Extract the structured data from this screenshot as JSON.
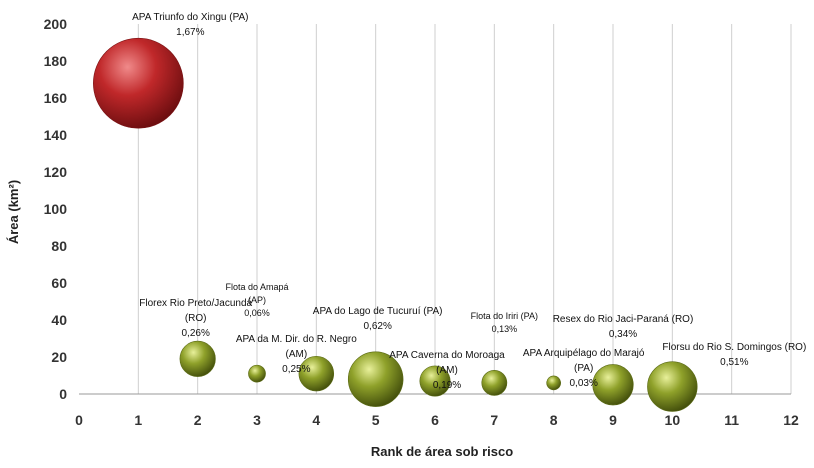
{
  "chart_data": {
    "type": "scatter",
    "subtype": "bubble",
    "title": "",
    "xlabel": "Rank de área sob risco",
    "ylabel": "Área (km²)",
    "xlim": [
      0,
      12
    ],
    "ylim": [
      0,
      200
    ],
    "x_ticks": [
      "0",
      "1",
      "2",
      "3",
      "4",
      "5",
      "6",
      "7",
      "8",
      "9",
      "10",
      "11",
      "12"
    ],
    "y_ticks": [
      "0",
      "20",
      "40",
      "60",
      "80",
      "100",
      "120",
      "140",
      "160",
      "180",
      "200"
    ],
    "grid": {
      "vertical": true,
      "horizontal": false
    },
    "colors": {
      "highlight": "#c0282a",
      "default": "#8fa12a",
      "grid": "#cfcfcf"
    },
    "points": [
      {
        "x": 1,
        "y": 168,
        "size_pct": 1.67,
        "highlight": true,
        "label_lines": [
          "APA  Triunfo do Xingu  (PA)",
          "1,67%"
        ]
      },
      {
        "x": 2,
        "y": 19,
        "size_pct": 0.26,
        "highlight": false,
        "label_lines": [
          "Florex Rio Preto/Jacundá",
          "(RO)",
          "0,26%"
        ]
      },
      {
        "x": 3,
        "y": 11,
        "size_pct": 0.06,
        "highlight": false,
        "label_lines": [
          "Flota do Amapá",
          "(AP)",
          "0,06%"
        ]
      },
      {
        "x": 4,
        "y": 11,
        "size_pct": 0.25,
        "highlight": false,
        "label_lines": [
          "APA da M. Dir. do R. Negro",
          "(AM)",
          "0,25%"
        ]
      },
      {
        "x": 5,
        "y": 8,
        "size_pct": 0.62,
        "highlight": false,
        "label_lines": [
          "APA do Lago de Tucuruí (PA)",
          "0,62%"
        ]
      },
      {
        "x": 6,
        "y": 7,
        "size_pct": 0.19,
        "highlight": false,
        "label_lines": [
          "APA Caverna do Moroaga",
          "(AM)",
          "0,19%"
        ]
      },
      {
        "x": 7,
        "y": 6,
        "size_pct": 0.13,
        "highlight": false,
        "label_lines": [
          "Flota do Iriri (PA)",
          "0,13%"
        ]
      },
      {
        "x": 8,
        "y": 6,
        "size_pct": 0.03,
        "highlight": false,
        "label_lines": [
          "APA  Arquipélago do Marajó",
          "(PA)",
          "0,03%"
        ]
      },
      {
        "x": 9,
        "y": 5,
        "size_pct": 0.34,
        "highlight": false,
        "label_lines": [
          "Resex do Rio Jaci-Paraná (RO)",
          "0,34%"
        ]
      },
      {
        "x": 10,
        "y": 4,
        "size_pct": 0.51,
        "highlight": false,
        "label_lines": [
          "Florsu do Rio S. Domingos (RO)",
          "0,51%"
        ]
      }
    ]
  }
}
